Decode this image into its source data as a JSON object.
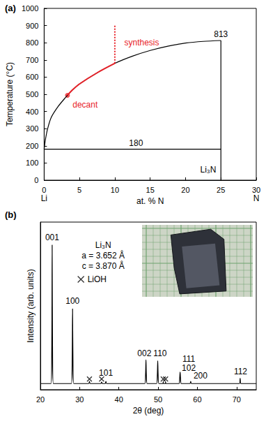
{
  "chart_data": [
    {
      "type": "line",
      "title": "(a)",
      "xlabel": "at. % N",
      "ylabel": "Temperature (°C)",
      "xlim": [
        0,
        30
      ],
      "xticks": [
        0,
        5,
        10,
        15,
        20,
        25,
        30
      ],
      "ylim": [
        0,
        1000
      ],
      "yticks": [
        0,
        100,
        200,
        300,
        400,
        500,
        600,
        700,
        800,
        900,
        1000
      ],
      "grid": false,
      "series": [
        {
          "color": "#000000",
          "x": [
            0,
            0.2,
            0.5,
            1,
            2,
            3,
            4,
            5,
            7.5,
            10,
            12.5,
            15,
            17.5,
            20,
            22.5,
            25
          ],
          "values": [
            180,
            240,
            300,
            365,
            430,
            480,
            525,
            560,
            625,
            680,
            722,
            755,
            780,
            798,
            808,
            813
          ]
        },
        {
          "color": "#000000",
          "x": [
            0,
            25
          ],
          "values": [
            180,
            180
          ]
        },
        {
          "color": "#000000",
          "x": [
            25,
            25
          ],
          "values": [
            0,
            813
          ]
        },
        {
          "color": "#e8232a",
          "line_style": "dotted",
          "x": [
            10,
            10
          ],
          "values": [
            680,
            900
          ]
        },
        {
          "color": "#e8232a",
          "x": [
            10,
            7.5,
            5,
            4,
            3.3
          ],
          "values": [
            680,
            625,
            560,
            525,
            494
          ]
        },
        {
          "type": "scatter",
          "marker": "circle",
          "color": "#e8232a",
          "x": [
            3.3
          ],
          "values": [
            494
          ]
        }
      ],
      "annotations": [
        {
          "text": "813",
          "x": 25,
          "y": 850
        },
        {
          "text": "180",
          "x": 13,
          "y": 215
        },
        {
          "text": "synthesis",
          "x": 13.8,
          "y": 800,
          "color": "#e8232a"
        },
        {
          "text": "decant",
          "x": 5.8,
          "y": 440,
          "color": "#e8232a"
        },
        {
          "text": "Li",
          "x": 0,
          "y": -105
        },
        {
          "text": "N",
          "x": 30,
          "y": -105
        },
        {
          "text": "Li₃N",
          "x": 23.2,
          "y": 60
        }
      ]
    },
    {
      "type": "line",
      "title": "(b)",
      "xlabel": "2θ (deg)",
      "ylabel": "Intensity (arb. units)",
      "xlim": [
        20,
        75
      ],
      "xticks": [
        20,
        30,
        40,
        50,
        60,
        70
      ],
      "ylim": [
        0,
        110
      ],
      "yticks": [],
      "tick_labels": "x",
      "grid": false,
      "legend": "top-left",
      "series": [
        {
          "color": "#000000",
          "x": [
            20,
            22.7,
            22.9,
            23.0,
            23.1,
            23.3,
            27.9,
            28.1,
            28.2,
            28.3,
            28.5,
            32.3,
            32.5,
            32.7,
            35.4,
            35.6,
            35.8,
            36.5,
            36.7,
            36.9,
            46.6,
            46.8,
            46.9,
            47.0,
            47.2,
            49.6,
            49.8,
            49.9,
            50.0,
            50.2,
            51.2,
            51.3,
            51.4,
            51.8,
            51.9,
            52.0,
            55.3,
            55.5,
            55.6,
            55.7,
            55.9,
            58.1,
            58.3,
            58.5,
            70.7,
            70.9,
            71.1,
            75
          ],
          "values": [
            4,
            4,
            25,
            95,
            25,
            4,
            4,
            20,
            53,
            20,
            4,
            4,
            5.5,
            4,
            4,
            5,
            4,
            4,
            5.5,
            4,
            4,
            10,
            19.5,
            10,
            4,
            4,
            10,
            19,
            10,
            4,
            4,
            5,
            4,
            4,
            5,
            4,
            4,
            8,
            11.5,
            8,
            4,
            4,
            5.5,
            4,
            4,
            7.5,
            4,
            4
          ]
        },
        {
          "name": "LiOH",
          "type": "scatter",
          "marker": "x",
          "color": "#000000",
          "x": [
            32.5,
            35.6,
            51.3,
            51.9
          ],
          "values": [
            7,
            7,
            7,
            7
          ]
        }
      ],
      "annotations": [
        {
          "text": "001",
          "x": 23.0,
          "y": 100
        },
        {
          "text": "100",
          "x": 28.2,
          "y": 58
        },
        {
          "text": "101",
          "x": 36.7,
          "y": 11
        },
        {
          "text": "002",
          "x": 46.5,
          "y": 24
        },
        {
          "text": "110",
          "x": 50.5,
          "y": 24
        },
        {
          "text": "111",
          "x": 57.8,
          "y": 20
        },
        {
          "text": "102",
          "x": 57.8,
          "y": 14
        },
        {
          "text": "200",
          "x": 60.8,
          "y": 9
        },
        {
          "text": "112",
          "x": 71,
          "y": 12
        },
        {
          "text": "Li₃N",
          "x": 36,
          "y": 95
        },
        {
          "text": "a = 3.652 Å",
          "x": 36,
          "y": 88
        },
        {
          "text": "c = 3.870 Å",
          "x": 36,
          "y": 81
        }
      ]
    }
  ]
}
